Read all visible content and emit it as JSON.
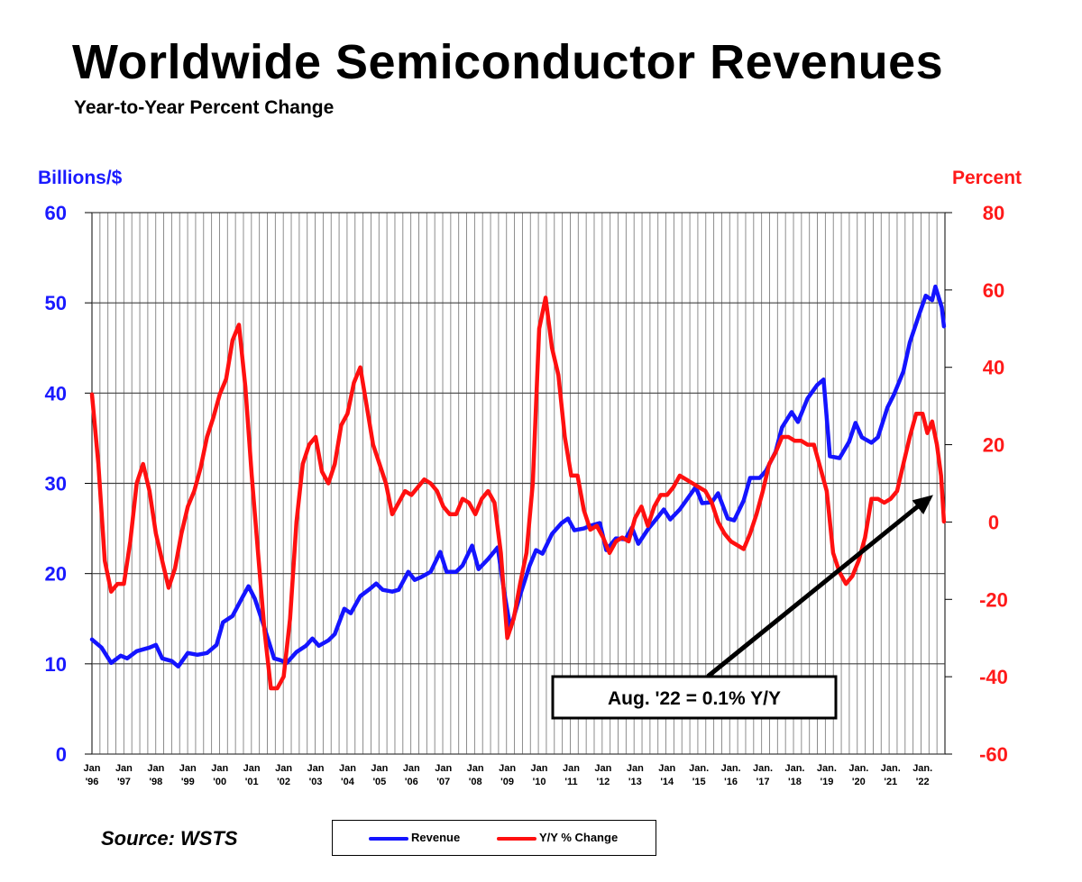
{
  "title": "Worldwide Semiconductor Revenues",
  "subtitle": "Year-to-Year Percent Change",
  "source": "Source: WSTS",
  "colors": {
    "revenue": "#1414ff",
    "yoy": "#ff1010",
    "grid": "#808080"
  },
  "chart_data": {
    "type": "line",
    "title": "Worldwide Semiconductor Revenues",
    "subtitle": "Year-to-Year Percent Change",
    "y_left_label": "Billions/$",
    "y_right_label": "Percent",
    "y_left_lim": [
      0,
      60
    ],
    "y_left_ticks": [
      "0",
      "10",
      "20",
      "30",
      "40",
      "50",
      "60"
    ],
    "y_right_lim": [
      -60,
      80
    ],
    "y_right_ticks": [
      "-60",
      "-40",
      "-20",
      "0",
      "20",
      "40",
      "60",
      "80"
    ],
    "x_lim": [
      1996.0,
      2022.7
    ],
    "x_ticks": [
      {
        "m": "Jan",
        "y": "'96"
      },
      {
        "m": "Jan",
        "y": "'97"
      },
      {
        "m": "Jan",
        "y": "'98"
      },
      {
        "m": "Jan",
        "y": "'99"
      },
      {
        "m": "Jan",
        "y": "'00"
      },
      {
        "m": "Jan",
        "y": "'01"
      },
      {
        "m": "Jan",
        "y": "'02"
      },
      {
        "m": "Jan",
        "y": "'03"
      },
      {
        "m": "Jan",
        "y": "'04"
      },
      {
        "m": "Jan",
        "y": "'05"
      },
      {
        "m": "Jan",
        "y": "'06"
      },
      {
        "m": "Jan",
        "y": "'07"
      },
      {
        "m": "Jan",
        "y": "'08"
      },
      {
        "m": "Jan",
        "y": "'09"
      },
      {
        "m": "Jan",
        "y": "'10"
      },
      {
        "m": "Jan",
        "y": "'11"
      },
      {
        "m": "Jan",
        "y": "'12"
      },
      {
        "m": "Jan",
        "y": "'13"
      },
      {
        "m": "Jan",
        "y": "'14"
      },
      {
        "m": "Jan.",
        "y": "'15"
      },
      {
        "m": "Jan.",
        "y": "'16"
      },
      {
        "m": "Jan.",
        "y": "'17"
      },
      {
        "m": "Jan.",
        "y": "'18"
      },
      {
        "m": "Jan.",
        "y": "'19"
      },
      {
        "m": "Jan.",
        "y": "'20"
      },
      {
        "m": "Jan.",
        "y": "'21"
      },
      {
        "m": "Jan.",
        "y": "'22"
      }
    ],
    "series": [
      {
        "name": "Revenue",
        "axis": "left",
        "points": [
          [
            1996.0,
            12.7
          ],
          [
            1996.3,
            11.8
          ],
          [
            1996.6,
            10.1
          ],
          [
            1996.9,
            10.9
          ],
          [
            1997.1,
            10.6
          ],
          [
            1997.4,
            11.4
          ],
          [
            1997.8,
            11.8
          ],
          [
            1998.0,
            12.1
          ],
          [
            1998.2,
            10.6
          ],
          [
            1998.5,
            10.3
          ],
          [
            1998.7,
            9.7
          ],
          [
            1999.0,
            11.2
          ],
          [
            1999.3,
            11.0
          ],
          [
            1999.6,
            11.2
          ],
          [
            1999.9,
            12.1
          ],
          [
            2000.1,
            14.6
          ],
          [
            2000.4,
            15.3
          ],
          [
            2000.7,
            17.3
          ],
          [
            2000.9,
            18.6
          ],
          [
            2001.1,
            17.2
          ],
          [
            2001.4,
            14.0
          ],
          [
            2001.7,
            10.6
          ],
          [
            2001.9,
            10.4
          ],
          [
            2002.1,
            10.1
          ],
          [
            2002.4,
            11.3
          ],
          [
            2002.7,
            12.0
          ],
          [
            2002.9,
            12.8
          ],
          [
            2003.1,
            12.0
          ],
          [
            2003.4,
            12.6
          ],
          [
            2003.6,
            13.3
          ],
          [
            2003.9,
            16.1
          ],
          [
            2004.1,
            15.6
          ],
          [
            2004.4,
            17.5
          ],
          [
            2004.7,
            18.3
          ],
          [
            2004.9,
            18.9
          ],
          [
            2005.1,
            18.2
          ],
          [
            2005.4,
            18.0
          ],
          [
            2005.6,
            18.2
          ],
          [
            2005.9,
            20.2
          ],
          [
            2006.1,
            19.3
          ],
          [
            2006.3,
            19.6
          ],
          [
            2006.6,
            20.2
          ],
          [
            2006.9,
            22.4
          ],
          [
            2007.1,
            20.2
          ],
          [
            2007.4,
            20.2
          ],
          [
            2007.6,
            20.9
          ],
          [
            2007.9,
            23.1
          ],
          [
            2008.1,
            20.5
          ],
          [
            2008.4,
            21.6
          ],
          [
            2008.7,
            22.9
          ],
          [
            2008.9,
            18.0
          ],
          [
            2009.1,
            13.9
          ],
          [
            2009.4,
            17.6
          ],
          [
            2009.7,
            20.9
          ],
          [
            2009.9,
            22.6
          ],
          [
            2010.1,
            22.2
          ],
          [
            2010.4,
            24.4
          ],
          [
            2010.7,
            25.6
          ],
          [
            2010.9,
            26.1
          ],
          [
            2011.1,
            24.8
          ],
          [
            2011.4,
            25.0
          ],
          [
            2011.6,
            25.3
          ],
          [
            2011.9,
            25.6
          ],
          [
            2012.1,
            22.6
          ],
          [
            2012.4,
            23.9
          ],
          [
            2012.7,
            23.8
          ],
          [
            2012.9,
            25.1
          ],
          [
            2013.1,
            23.3
          ],
          [
            2013.4,
            24.9
          ],
          [
            2013.7,
            26.2
          ],
          [
            2013.9,
            27.1
          ],
          [
            2014.1,
            26.0
          ],
          [
            2014.4,
            27.1
          ],
          [
            2014.7,
            28.6
          ],
          [
            2014.9,
            29.6
          ],
          [
            2015.1,
            27.8
          ],
          [
            2015.4,
            27.9
          ],
          [
            2015.6,
            28.9
          ],
          [
            2015.9,
            26.1
          ],
          [
            2016.1,
            25.9
          ],
          [
            2016.4,
            28.1
          ],
          [
            2016.6,
            30.6
          ],
          [
            2016.9,
            30.6
          ],
          [
            2017.1,
            31.4
          ],
          [
            2017.4,
            33.5
          ],
          [
            2017.6,
            36.2
          ],
          [
            2017.9,
            37.9
          ],
          [
            2018.1,
            36.8
          ],
          [
            2018.4,
            39.4
          ],
          [
            2018.7,
            40.9
          ],
          [
            2018.9,
            41.5
          ],
          [
            2019.1,
            33.0
          ],
          [
            2019.4,
            32.8
          ],
          [
            2019.7,
            34.6
          ],
          [
            2019.9,
            36.7
          ],
          [
            2020.1,
            35.1
          ],
          [
            2020.4,
            34.5
          ],
          [
            2020.6,
            35.1
          ],
          [
            2020.9,
            38.4
          ],
          [
            2021.1,
            39.8
          ],
          [
            2021.4,
            42.4
          ],
          [
            2021.6,
            45.6
          ],
          [
            2021.9,
            48.8
          ],
          [
            2022.1,
            50.8
          ],
          [
            2022.3,
            50.3
          ],
          [
            2022.4,
            51.8
          ],
          [
            2022.6,
            49.5
          ],
          [
            2022.67,
            47.4
          ]
        ]
      },
      {
        "name": "Y/Y % Change",
        "axis": "right",
        "points": [
          [
            1996.0,
            33
          ],
          [
            1996.2,
            15
          ],
          [
            1996.4,
            -10
          ],
          [
            1996.6,
            -18
          ],
          [
            1996.8,
            -16
          ],
          [
            1997.0,
            -16
          ],
          [
            1997.2,
            -5
          ],
          [
            1997.4,
            10
          ],
          [
            1997.6,
            15
          ],
          [
            1997.8,
            8
          ],
          [
            1998.0,
            -3
          ],
          [
            1998.2,
            -10
          ],
          [
            1998.4,
            -17
          ],
          [
            1998.6,
            -12
          ],
          [
            1998.8,
            -3
          ],
          [
            1999.0,
            4
          ],
          [
            1999.2,
            8
          ],
          [
            1999.4,
            14
          ],
          [
            1999.6,
            22
          ],
          [
            1999.8,
            27
          ],
          [
            2000.0,
            33
          ],
          [
            2000.2,
            37
          ],
          [
            2000.4,
            47
          ],
          [
            2000.6,
            51
          ],
          [
            2000.8,
            35
          ],
          [
            2001.0,
            12
          ],
          [
            2001.2,
            -8
          ],
          [
            2001.4,
            -28
          ],
          [
            2001.6,
            -43
          ],
          [
            2001.8,
            -43
          ],
          [
            2002.0,
            -40
          ],
          [
            2002.2,
            -25
          ],
          [
            2002.4,
            0
          ],
          [
            2002.6,
            15
          ],
          [
            2002.8,
            20
          ],
          [
            2003.0,
            22
          ],
          [
            2003.2,
            13
          ],
          [
            2003.4,
            10
          ],
          [
            2003.6,
            15
          ],
          [
            2003.8,
            25
          ],
          [
            2004.0,
            28
          ],
          [
            2004.2,
            36
          ],
          [
            2004.4,
            40
          ],
          [
            2004.6,
            30
          ],
          [
            2004.8,
            20
          ],
          [
            2005.0,
            15
          ],
          [
            2005.2,
            10
          ],
          [
            2005.4,
            2
          ],
          [
            2005.6,
            5
          ],
          [
            2005.8,
            8
          ],
          [
            2006.0,
            7
          ],
          [
            2006.2,
            9
          ],
          [
            2006.4,
            11
          ],
          [
            2006.6,
            10
          ],
          [
            2006.8,
            8
          ],
          [
            2007.0,
            4
          ],
          [
            2007.2,
            2
          ],
          [
            2007.4,
            2
          ],
          [
            2007.6,
            6
          ],
          [
            2007.8,
            5
          ],
          [
            2008.0,
            2
          ],
          [
            2008.2,
            6
          ],
          [
            2008.4,
            8
          ],
          [
            2008.6,
            5
          ],
          [
            2008.8,
            -8
          ],
          [
            2009.0,
            -30
          ],
          [
            2009.2,
            -25
          ],
          [
            2009.4,
            -16
          ],
          [
            2009.6,
            -8
          ],
          [
            2009.8,
            10
          ],
          [
            2010.0,
            50
          ],
          [
            2010.2,
            58
          ],
          [
            2010.4,
            45
          ],
          [
            2010.6,
            38
          ],
          [
            2010.8,
            22
          ],
          [
            2011.0,
            12
          ],
          [
            2011.2,
            12
          ],
          [
            2011.4,
            3
          ],
          [
            2011.6,
            -2
          ],
          [
            2011.8,
            -1
          ],
          [
            2012.0,
            -4
          ],
          [
            2012.2,
            -8
          ],
          [
            2012.4,
            -5
          ],
          [
            2012.6,
            -4
          ],
          [
            2012.8,
            -5
          ],
          [
            2013.0,
            1
          ],
          [
            2013.2,
            4
          ],
          [
            2013.4,
            -1
          ],
          [
            2013.6,
            4
          ],
          [
            2013.8,
            7
          ],
          [
            2014.0,
            7
          ],
          [
            2014.2,
            9
          ],
          [
            2014.4,
            12
          ],
          [
            2014.6,
            11
          ],
          [
            2014.8,
            10
          ],
          [
            2015.0,
            9
          ],
          [
            2015.2,
            8
          ],
          [
            2015.4,
            5
          ],
          [
            2015.6,
            0
          ],
          [
            2015.8,
            -3
          ],
          [
            2016.0,
            -5
          ],
          [
            2016.2,
            -6
          ],
          [
            2016.4,
            -7
          ],
          [
            2016.6,
            -3
          ],
          [
            2016.8,
            2
          ],
          [
            2017.0,
            8
          ],
          [
            2017.2,
            15
          ],
          [
            2017.4,
            18
          ],
          [
            2017.6,
            22
          ],
          [
            2017.8,
            22
          ],
          [
            2018.0,
            21
          ],
          [
            2018.2,
            21
          ],
          [
            2018.4,
            20
          ],
          [
            2018.6,
            20
          ],
          [
            2018.8,
            14
          ],
          [
            2019.0,
            8
          ],
          [
            2019.2,
            -8
          ],
          [
            2019.4,
            -13
          ],
          [
            2019.6,
            -16
          ],
          [
            2019.8,
            -14
          ],
          [
            2020.0,
            -10
          ],
          [
            2020.2,
            -4
          ],
          [
            2020.4,
            6
          ],
          [
            2020.6,
            6
          ],
          [
            2020.8,
            5
          ],
          [
            2021.0,
            6
          ],
          [
            2021.2,
            8
          ],
          [
            2021.4,
            15
          ],
          [
            2021.6,
            22
          ],
          [
            2021.8,
            28
          ],
          [
            2022.0,
            28
          ],
          [
            2022.15,
            23
          ],
          [
            2022.3,
            26
          ],
          [
            2022.45,
            20
          ],
          [
            2022.58,
            12
          ],
          [
            2022.67,
            0.1
          ]
        ]
      }
    ],
    "annotation": "Aug. '22 = 0.1% Y/Y",
    "legend": [
      "Revenue",
      "Y/Y % Change"
    ],
    "grid": true
  }
}
